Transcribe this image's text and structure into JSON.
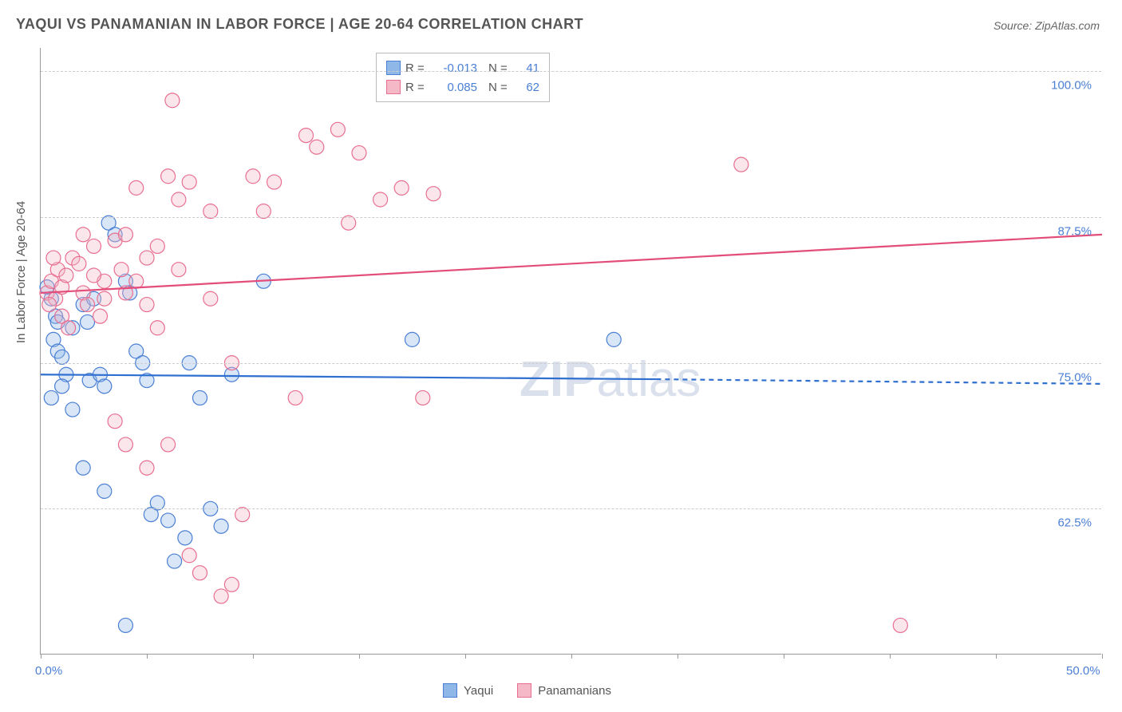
{
  "title": "YAQUI VS PANAMANIAN IN LABOR FORCE | AGE 20-64 CORRELATION CHART",
  "source": "Source: ZipAtlas.com",
  "y_axis_label": "In Labor Force | Age 20-64",
  "watermark_a": "ZIP",
  "watermark_b": "atlas",
  "chart": {
    "type": "scatter",
    "background_color": "#ffffff",
    "grid_color": "#cccccc",
    "axis_color": "#999999",
    "xlim": [
      0,
      50
    ],
    "ylim": [
      50,
      102
    ],
    "x_ticks": [
      0,
      5,
      10,
      15,
      20,
      25,
      30,
      35,
      40,
      45,
      50
    ],
    "x_tick_labels": {
      "0": "0.0%",
      "50": "50.0%"
    },
    "y_ticks": [
      62.5,
      75.0,
      87.5,
      100.0
    ],
    "y_tick_labels": [
      "62.5%",
      "75.0%",
      "87.5%",
      "100.0%"
    ],
    "point_radius": 9,
    "series": [
      {
        "name": "Yaqui",
        "color_fill": "#8fb8e8",
        "color_stroke": "#4a7fd4",
        "R": "-0.013",
        "N": "41",
        "trend": {
          "x1": 0,
          "y1": 74.0,
          "x2": 29,
          "y2": 73.6,
          "x2_dash": 50,
          "y2_dash": 73.2,
          "color": "#2f6fd0",
          "width": 2.2
        },
        "points": [
          [
            0.5,
            80.5
          ],
          [
            0.7,
            79.0
          ],
          [
            0.6,
            77.0
          ],
          [
            0.8,
            76.0
          ],
          [
            1.0,
            75.5
          ],
          [
            1.2,
            74.0
          ],
          [
            1.0,
            73.0
          ],
          [
            0.5,
            72.0
          ],
          [
            0.8,
            78.5
          ],
          [
            1.5,
            78.0
          ],
          [
            2.0,
            80.0
          ],
          [
            2.5,
            80.5
          ],
          [
            2.3,
            73.5
          ],
          [
            2.8,
            74.0
          ],
          [
            3.0,
            73.0
          ],
          [
            3.2,
            87.0
          ],
          [
            3.5,
            86.0
          ],
          [
            4.0,
            82.0
          ],
          [
            4.2,
            81.0
          ],
          [
            4.5,
            76.0
          ],
          [
            4.8,
            75.0
          ],
          [
            5.0,
            73.5
          ],
          [
            5.2,
            62.0
          ],
          [
            5.5,
            63.0
          ],
          [
            6.0,
            61.5
          ],
          [
            6.3,
            58.0
          ],
          [
            6.8,
            60.0
          ],
          [
            7.0,
            75.0
          ],
          [
            7.5,
            72.0
          ],
          [
            8.0,
            62.5
          ],
          [
            8.5,
            61.0
          ],
          [
            9.0,
            74.0
          ],
          [
            10.5,
            82.0
          ],
          [
            2.0,
            66.0
          ],
          [
            3.0,
            64.0
          ],
          [
            17.5,
            77.0
          ],
          [
            27.0,
            77.0
          ],
          [
            4.0,
            52.5
          ],
          [
            1.5,
            71.0
          ],
          [
            0.3,
            81.5
          ],
          [
            2.2,
            78.5
          ]
        ]
      },
      {
        "name": "Panamanians",
        "color_fill": "#f4b8c6",
        "color_stroke": "#e86f91",
        "R": "0.085",
        "N": "62",
        "trend": {
          "x1": 0,
          "y1": 81.0,
          "x2": 50,
          "y2": 86.0,
          "color": "#e34d7a",
          "width": 2.2
        },
        "points": [
          [
            0.3,
            81.0
          ],
          [
            0.5,
            82.0
          ],
          [
            0.7,
            80.5
          ],
          [
            0.8,
            83.0
          ],
          [
            1.0,
            81.5
          ],
          [
            1.2,
            82.5
          ],
          [
            1.5,
            84.0
          ],
          [
            1.8,
            83.5
          ],
          [
            2.0,
            81.0
          ],
          [
            2.2,
            80.0
          ],
          [
            2.5,
            85.0
          ],
          [
            2.8,
            79.0
          ],
          [
            3.0,
            82.0
          ],
          [
            3.5,
            85.5
          ],
          [
            4.0,
            86.0
          ],
          [
            4.5,
            90.0
          ],
          [
            5.0,
            84.0
          ],
          [
            5.5,
            78.0
          ],
          [
            6.0,
            91.0
          ],
          [
            6.2,
            97.5
          ],
          [
            6.5,
            89.0
          ],
          [
            7.0,
            90.5
          ],
          [
            7.5,
            57.0
          ],
          [
            8.0,
            88.0
          ],
          [
            8.5,
            55.0
          ],
          [
            9.0,
            75.0
          ],
          [
            9.5,
            62.0
          ],
          [
            10.0,
            91.0
          ],
          [
            10.5,
            88.0
          ],
          [
            11.0,
            90.5
          ],
          [
            12.0,
            72.0
          ],
          [
            12.5,
            94.5
          ],
          [
            13.0,
            93.5
          ],
          [
            14.0,
            95.0
          ],
          [
            14.5,
            87.0
          ],
          [
            15.0,
            93.0
          ],
          [
            16.0,
            89.0
          ],
          [
            17.0,
            90.0
          ],
          [
            18.0,
            72.0
          ],
          [
            18.5,
            89.5
          ],
          [
            5.0,
            66.0
          ],
          [
            6.0,
            68.0
          ],
          [
            7.0,
            58.5
          ],
          [
            3.5,
            70.0
          ],
          [
            4.0,
            68.0
          ],
          [
            1.0,
            79.0
          ],
          [
            1.3,
            78.0
          ],
          [
            0.4,
            80.0
          ],
          [
            0.6,
            84.0
          ],
          [
            2.0,
            86.0
          ],
          [
            3.0,
            80.5
          ],
          [
            4.0,
            81.0
          ],
          [
            5.0,
            80.0
          ],
          [
            6.5,
            83.0
          ],
          [
            8.0,
            80.5
          ],
          [
            33.0,
            92.0
          ],
          [
            40.5,
            52.5
          ],
          [
            9.0,
            56.0
          ],
          [
            2.5,
            82.5
          ],
          [
            3.8,
            83.0
          ],
          [
            4.5,
            82.0
          ],
          [
            5.5,
            85.0
          ]
        ]
      }
    ]
  },
  "bottom_legend": [
    {
      "label": "Yaqui",
      "fill": "#8fb8e8",
      "stroke": "#4a7fd4"
    },
    {
      "label": "Panamanians",
      "fill": "#f4b8c6",
      "stroke": "#e86f91"
    }
  ]
}
